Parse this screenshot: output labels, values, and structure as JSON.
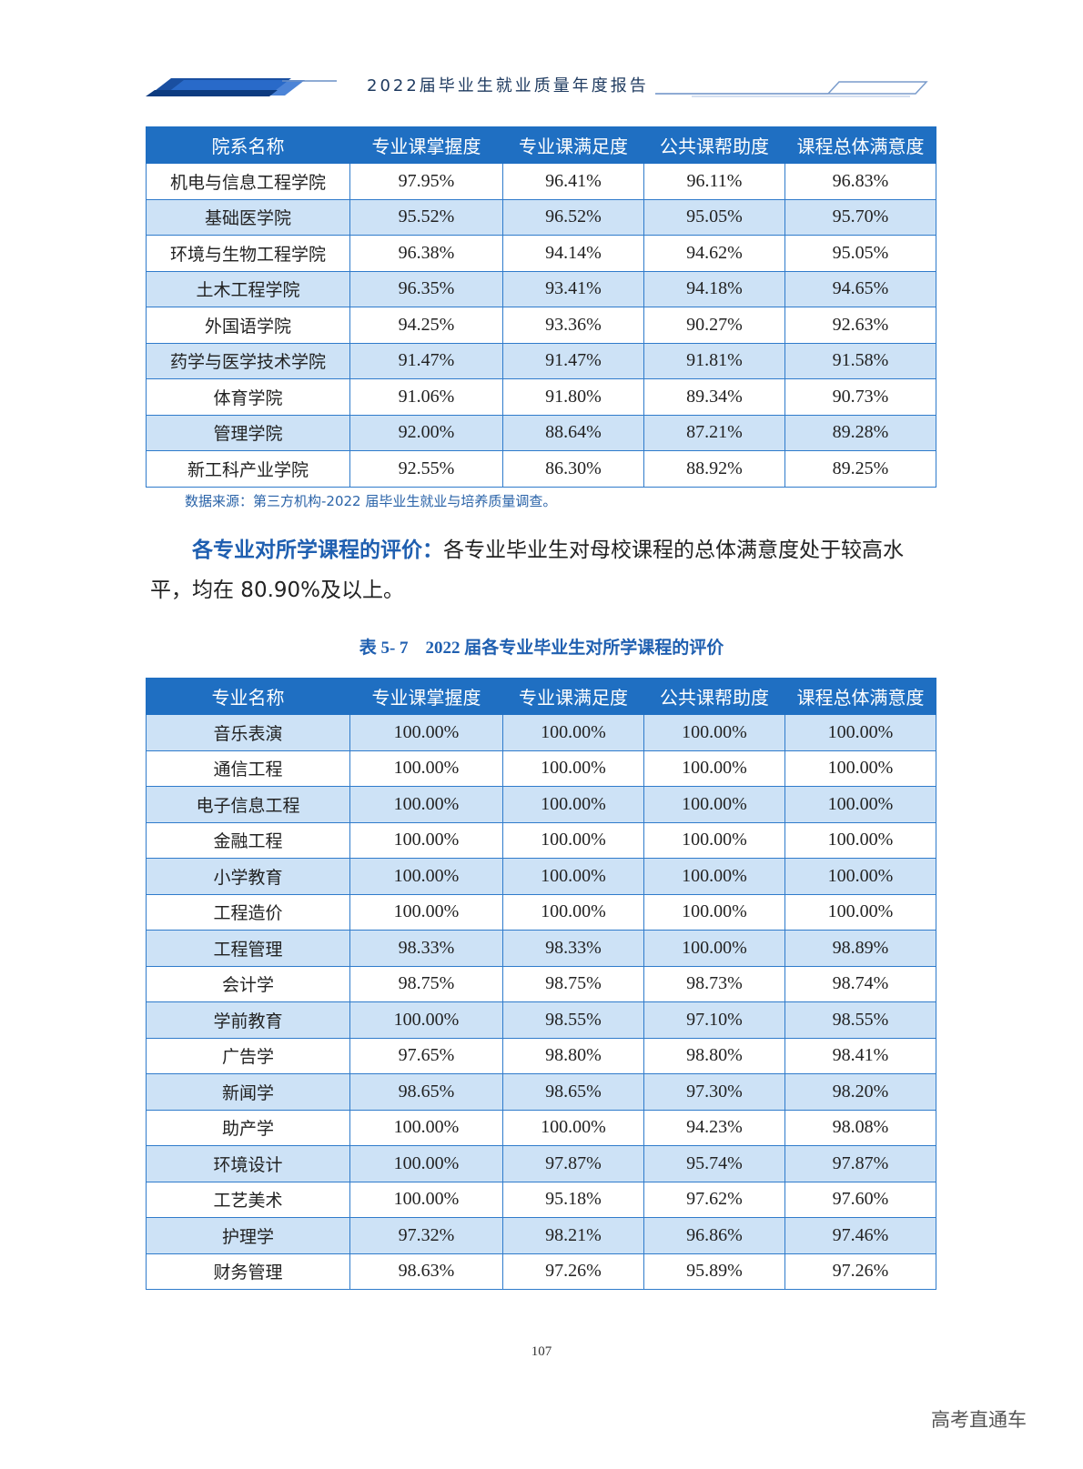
{
  "header": {
    "title": "2022届毕业生就业质量年度报告"
  },
  "table1": {
    "columns": [
      "院系名称",
      "专业课掌握度",
      "专业课满足度",
      "公共课帮助度",
      "课程总体满意度"
    ],
    "rows": [
      [
        "机电与信息工程学院",
        "97.95%",
        "96.41%",
        "96.11%",
        "96.83%"
      ],
      [
        "基础医学院",
        "95.52%",
        "96.52%",
        "95.05%",
        "95.70%"
      ],
      [
        "环境与生物工程学院",
        "96.38%",
        "94.14%",
        "94.62%",
        "95.05%"
      ],
      [
        "土木工程学院",
        "96.35%",
        "93.41%",
        "94.18%",
        "94.65%"
      ],
      [
        "外国语学院",
        "94.25%",
        "93.36%",
        "90.27%",
        "92.63%"
      ],
      [
        "药学与医学技术学院",
        "91.47%",
        "91.47%",
        "91.81%",
        "91.58%"
      ],
      [
        "体育学院",
        "91.06%",
        "91.80%",
        "89.34%",
        "90.73%"
      ],
      [
        "管理学院",
        "92.00%",
        "88.64%",
        "87.21%",
        "89.28%"
      ],
      [
        "新工科产业学院",
        "92.55%",
        "86.30%",
        "88.92%",
        "89.25%"
      ]
    ]
  },
  "source_note": "数据来源：第三方机构-2022 届毕业生就业与培养质量调查。",
  "paragraph": {
    "lead": "各专业对所学课程的评价：",
    "body": "各专业毕业生对母校课程的总体满意度处于较高水平，均在 80.90%及以上。"
  },
  "caption": "表 5- 7　2022 届各专业毕业生对所学课程的评价",
  "table2": {
    "columns": [
      "专业名称",
      "专业课掌握度",
      "专业课满足度",
      "公共课帮助度",
      "课程总体满意度"
    ],
    "rows": [
      [
        "音乐表演",
        "100.00%",
        "100.00%",
        "100.00%",
        "100.00%"
      ],
      [
        "通信工程",
        "100.00%",
        "100.00%",
        "100.00%",
        "100.00%"
      ],
      [
        "电子信息工程",
        "100.00%",
        "100.00%",
        "100.00%",
        "100.00%"
      ],
      [
        "金融工程",
        "100.00%",
        "100.00%",
        "100.00%",
        "100.00%"
      ],
      [
        "小学教育",
        "100.00%",
        "100.00%",
        "100.00%",
        "100.00%"
      ],
      [
        "工程造价",
        "100.00%",
        "100.00%",
        "100.00%",
        "100.00%"
      ],
      [
        "工程管理",
        "98.33%",
        "98.33%",
        "100.00%",
        "98.89%"
      ],
      [
        "会计学",
        "98.75%",
        "98.75%",
        "98.73%",
        "98.74%"
      ],
      [
        "学前教育",
        "100.00%",
        "98.55%",
        "97.10%",
        "98.55%"
      ],
      [
        "广告学",
        "97.65%",
        "98.80%",
        "98.80%",
        "98.41%"
      ],
      [
        "新闻学",
        "98.65%",
        "98.65%",
        "97.30%",
        "98.20%"
      ],
      [
        "助产学",
        "100.00%",
        "100.00%",
        "94.23%",
        "98.08%"
      ],
      [
        "环境设计",
        "100.00%",
        "97.87%",
        "95.74%",
        "97.87%"
      ],
      [
        "工艺美术",
        "100.00%",
        "95.18%",
        "97.62%",
        "97.60%"
      ],
      [
        "护理学",
        "97.32%",
        "98.21%",
        "96.86%",
        "97.46%"
      ],
      [
        "财务管理",
        "98.63%",
        "97.26%",
        "95.89%",
        "97.26%"
      ]
    ]
  },
  "page_number": "107",
  "watermark": "高考直通车",
  "colors": {
    "header_blue": "#1f6fc2",
    "alt_row": "#cde2f6",
    "accent_text": "#1f5fb0"
  }
}
